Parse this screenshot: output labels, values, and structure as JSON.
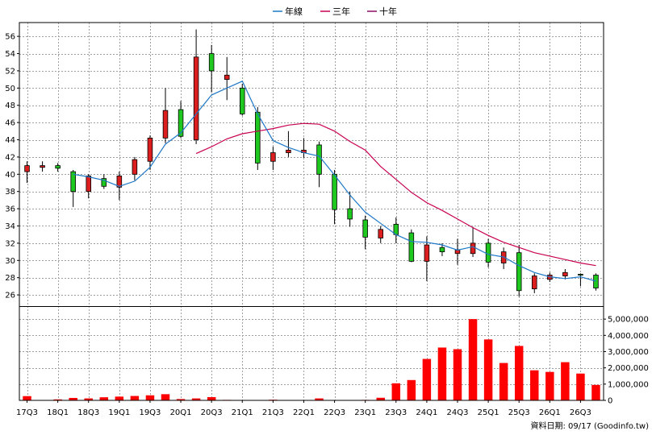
{
  "chart_data": {
    "type": "candlestick",
    "legend": [
      {
        "name": "年線",
        "color": "#1e78c8"
      },
      {
        "name": "三年",
        "color": "#c80050"
      },
      {
        "name": "十年",
        "color": "#8c0a64"
      }
    ],
    "legend_placement": "top-center",
    "grid": true,
    "source_note": "資料日期: 09/17 (Goodinfo.tw)",
    "x_ticks": [
      "17Q3",
      "18Q1",
      "18Q3",
      "19Q1",
      "19Q3",
      "20Q1",
      "20Q3",
      "21Q1",
      "21Q3",
      "22Q1",
      "22Q3",
      "23Q1",
      "23Q3",
      "24Q1",
      "24Q3",
      "25Q1",
      "25Q3",
      "26Q1",
      "26Q3"
    ],
    "price_axis": {
      "ylim": [
        24.7,
        57.6
      ],
      "ticks": [
        26,
        28,
        30,
        32,
        34,
        36,
        38,
        40,
        42,
        44,
        46,
        48,
        50,
        52,
        54,
        56
      ]
    },
    "volume_axis": {
      "ylim": [
        0,
        5800000
      ],
      "ticks": [
        0,
        1000000,
        2000000,
        3000000,
        4000000,
        5000000
      ],
      "tick_labels": [
        "0",
        "1,000,000",
        "2,000,000",
        "3,000,000",
        "4,000,000",
        "5,000,000"
      ]
    },
    "up_color": "#dc1e1e",
    "down_color": "#1ec81e",
    "volume_color": "#ff0000",
    "candles": [
      {
        "o": 40.3,
        "h": 41.5,
        "l": 39.0,
        "c": 41.0,
        "v": 260000
      },
      {
        "o": 40.8,
        "h": 41.5,
        "l": 40.3,
        "c": 41.0,
        "v": 20000
      },
      {
        "o": 41.0,
        "h": 41.3,
        "l": 40.3,
        "c": 40.7,
        "v": 60000
      },
      {
        "o": 40.3,
        "h": 40.5,
        "l": 36.2,
        "c": 38.0,
        "v": 150000
      },
      {
        "o": 38.0,
        "h": 40.0,
        "l": 37.2,
        "c": 39.8,
        "v": 120000
      },
      {
        "o": 39.5,
        "h": 40.0,
        "l": 38.3,
        "c": 38.6,
        "v": 190000
      },
      {
        "o": 38.5,
        "h": 40.3,
        "l": 37.0,
        "c": 39.8,
        "v": 230000
      },
      {
        "o": 40.0,
        "h": 42.0,
        "l": 39.3,
        "c": 41.7,
        "v": 270000
      },
      {
        "o": 41.5,
        "h": 44.5,
        "l": 40.5,
        "c": 44.2,
        "v": 310000
      },
      {
        "o": 44.2,
        "h": 50.0,
        "l": 43.6,
        "c": 47.4,
        "v": 380000
      },
      {
        "o": 47.5,
        "h": 48.5,
        "l": 44.2,
        "c": 44.4,
        "v": 80000
      },
      {
        "o": 44.0,
        "h": 56.8,
        "l": 43.5,
        "c": 53.6,
        "v": 120000
      },
      {
        "o": 54.0,
        "h": 55.0,
        "l": 49.5,
        "c": 52.0,
        "v": 200000
      },
      {
        "o": 51.0,
        "h": 53.6,
        "l": 48.6,
        "c": 51.5,
        "v": 30000
      },
      {
        "o": 50.0,
        "h": 50.5,
        "l": 46.8,
        "c": 47.0,
        "v": 20000
      },
      {
        "o": 47.2,
        "h": 47.8,
        "l": 40.5,
        "c": 41.3,
        "v": 10000
      },
      {
        "o": 41.5,
        "h": 43.2,
        "l": 40.5,
        "c": 42.5,
        "v": 40000
      },
      {
        "o": 42.5,
        "h": 45.0,
        "l": 42.0,
        "c": 42.8,
        "v": 10000
      },
      {
        "o": 42.5,
        "h": 44.2,
        "l": 41.9,
        "c": 42.8,
        "v": 10000
      },
      {
        "o": 43.4,
        "h": 43.8,
        "l": 38.5,
        "c": 40.0,
        "v": 120000
      },
      {
        "o": 40.0,
        "h": 40.5,
        "l": 34.2,
        "c": 35.9,
        "v": 20000
      },
      {
        "o": 36.0,
        "h": 38.0,
        "l": 33.9,
        "c": 34.8,
        "v": 20000
      },
      {
        "o": 34.7,
        "h": 35.2,
        "l": 31.3,
        "c": 32.7,
        "v": 30000
      },
      {
        "o": 32.6,
        "h": 34.0,
        "l": 32.0,
        "c": 33.6,
        "v": 160000
      },
      {
        "o": 34.2,
        "h": 35.0,
        "l": 32.0,
        "c": 33.0,
        "v": 1050000
      },
      {
        "o": 33.2,
        "h": 33.6,
        "l": 29.8,
        "c": 29.9,
        "v": 1250000
      },
      {
        "o": 29.9,
        "h": 32.8,
        "l": 27.6,
        "c": 31.8,
        "v": 2550000
      },
      {
        "o": 31.5,
        "h": 32.0,
        "l": 30.5,
        "c": 31.0,
        "v": 3250000
      },
      {
        "o": 30.8,
        "h": 32.5,
        "l": 29.5,
        "c": 31.2,
        "v": 3150000
      },
      {
        "o": 30.8,
        "h": 33.9,
        "l": 30.4,
        "c": 32.0,
        "v": 5000000
      },
      {
        "o": 32.0,
        "h": 32.5,
        "l": 29.2,
        "c": 29.8,
        "v": 3750000
      },
      {
        "o": 29.7,
        "h": 31.5,
        "l": 29.0,
        "c": 31.0,
        "v": 2300000
      },
      {
        "o": 30.9,
        "h": 31.8,
        "l": 25.8,
        "c": 26.5,
        "v": 3350000
      },
      {
        "o": 26.7,
        "h": 28.5,
        "l": 26.2,
        "c": 28.2,
        "v": 1850000
      },
      {
        "o": 27.8,
        "h": 28.6,
        "l": 27.5,
        "c": 28.3,
        "v": 1750000
      },
      {
        "o": 28.2,
        "h": 29.0,
        "l": 27.8,
        "c": 28.6,
        "v": 2350000
      },
      {
        "o": 28.4,
        "h": 28.5,
        "l": 27.0,
        "c": 28.3,
        "v": 1650000
      },
      {
        "o": 28.3,
        "h": 28.5,
        "l": 26.5,
        "c": 26.8,
        "v": 950000
      }
    ],
    "year_line": [
      null,
      null,
      null,
      40.0,
      39.7,
      39.3,
      38.6,
      39.2,
      40.8,
      43.5,
      44.8,
      47.0,
      49.2,
      50.0,
      50.8,
      47.0,
      43.9,
      43.1,
      42.5,
      42.1,
      39.9,
      37.6,
      35.6,
      34.3,
      33.0,
      32.2,
      32.1,
      31.8,
      31.2,
      31.6,
      30.7,
      30.4,
      29.4,
      28.6,
      28.1,
      27.9,
      28.1,
      27.6
    ],
    "three_year_line": [
      null,
      null,
      null,
      null,
      null,
      null,
      null,
      null,
      null,
      null,
      null,
      42.4,
      43.2,
      44.1,
      44.7,
      45.0,
      45.3,
      45.7,
      45.9,
      45.8,
      45.0,
      43.8,
      42.8,
      40.9,
      39.4,
      37.9,
      36.7,
      35.8,
      34.8,
      33.8,
      32.9,
      32.1,
      31.5,
      30.9,
      30.5,
      30.1,
      29.7,
      29.4
    ]
  }
}
